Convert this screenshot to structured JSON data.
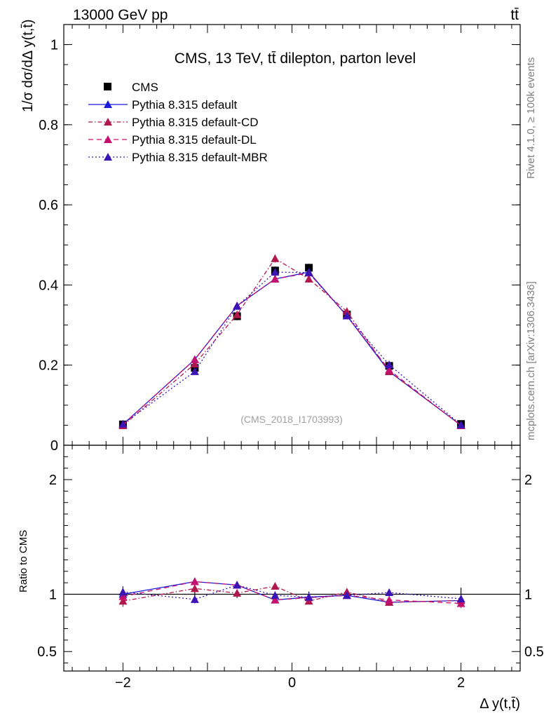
{
  "header": {
    "energy_label": "13000 GeV pp",
    "process_label": "tt̄"
  },
  "side_labels": {
    "rivet": "Rivet 4.1.0, ≥ 100k events",
    "mcplots": "mcplots.cern.ch [arXiv:1306.3436]"
  },
  "chart_data": [
    {
      "type": "line",
      "panel": "main",
      "title": "CMS, 13 TeV, tt̄ dilepton, parton level",
      "watermark": "(CMS_2018_I1703993)",
      "xlabel": "Δ y(t,t̄)",
      "ylabel": "1/σ dσ/dΔ y(t,t̄)",
      "xlim": [
        -2.7,
        2.7
      ],
      "ylim": [
        0,
        1.05
      ],
      "yticks": [
        0,
        0.2,
        0.4,
        0.6,
        0.8,
        1
      ],
      "ytick_labels": [
        "0",
        "0.2",
        "0.4",
        "0.6",
        "0.8",
        "1"
      ],
      "legend_position": "top-left",
      "x": [
        -2.0,
        -1.15,
        -0.65,
        -0.2,
        0.2,
        0.65,
        1.15,
        2.0
      ],
      "series": [
        {
          "name": "CMS",
          "marker": "square",
          "color": "#000000",
          "line": "none",
          "values": [
            0.052,
            0.193,
            0.322,
            0.436,
            0.443,
            0.326,
            0.198,
            0.053
          ],
          "errors": [
            0.003,
            0.008,
            0.01,
            0.01,
            0.01,
            0.01,
            0.008,
            0.003
          ]
        },
        {
          "name": "Pythia 8.315 default",
          "marker": "triangle",
          "color": "#1a1adb",
          "line": "solid",
          "values": [
            0.052,
            0.214,
            0.348,
            0.415,
            0.432,
            0.323,
            0.184,
            0.05
          ],
          "errors": [
            0.002,
            0.007,
            0.009,
            0.009,
            0.009,
            0.008,
            0.006,
            0.002
          ]
        },
        {
          "name": "Pythia 8.315 default-CD",
          "marker": "triangle",
          "color": "#b0174c",
          "line": "dashdot",
          "values": [
            0.049,
            0.203,
            0.326,
            0.466,
            0.415,
            0.334,
            0.184,
            0.05
          ],
          "errors": [
            0.002,
            0.007,
            0.009,
            0.01,
            0.009,
            0.008,
            0.006,
            0.002
          ]
        },
        {
          "name": "Pythia 8.315 default-DL",
          "marker": "triangle",
          "color": "#c4106e",
          "line": "dashed",
          "values": [
            0.052,
            0.214,
            0.348,
            0.415,
            0.43,
            0.323,
            0.188,
            0.049
          ],
          "errors": [
            0.002,
            0.007,
            0.009,
            0.009,
            0.009,
            0.008,
            0.006,
            0.002
          ]
        },
        {
          "name": "Pythia 8.315 default-MBR",
          "marker": "triangle",
          "color": "#3a14b4",
          "line": "dotted",
          "values": [
            0.053,
            0.184,
            0.347,
            0.432,
            0.431,
            0.323,
            0.201,
            0.051
          ],
          "errors": [
            0.002,
            0.007,
            0.009,
            0.009,
            0.009,
            0.008,
            0.006,
            0.002
          ]
        }
      ]
    },
    {
      "type": "line",
      "panel": "ratio",
      "ylabel": "Ratio to CMS",
      "ylim": [
        0.33,
        2.3
      ],
      "yticks": [
        0.5,
        1,
        2
      ],
      "ytick_labels": [
        "0.5",
        "1",
        "2"
      ],
      "xticks": [
        -2,
        0,
        2
      ],
      "xtick_labels": [
        "−2",
        "0",
        "2"
      ],
      "reference_line": 1,
      "x": [
        -2.0,
        -1.15,
        -0.65,
        -0.2,
        0.2,
        0.65,
        1.15,
        2.0
      ],
      "band_errors": [
        0.055,
        0.042,
        0.032,
        0.023,
        0.023,
        0.031,
        0.04,
        0.057
      ],
      "series": [
        {
          "name": "Pythia 8.315 default",
          "color": "#1a1adb",
          "line": "solid",
          "values": [
            1.0,
            1.11,
            1.08,
            0.95,
            0.975,
            0.99,
            0.93,
            0.945
          ],
          "errors": [
            0.05,
            0.035,
            0.03,
            0.02,
            0.02,
            0.028,
            0.03,
            0.04
          ]
        },
        {
          "name": "Pythia 8.315 default-CD",
          "color": "#b0174c",
          "line": "dashdot",
          "values": [
            0.94,
            1.05,
            1.01,
            1.07,
            0.94,
            1.02,
            0.93,
            0.945
          ],
          "errors": [
            0.05,
            0.035,
            0.03,
            0.022,
            0.02,
            0.028,
            0.03,
            0.04
          ]
        },
        {
          "name": "Pythia 8.315 default-DL",
          "color": "#c4106e",
          "line": "dashed",
          "values": [
            0.98,
            1.11,
            1.08,
            0.95,
            0.97,
            0.99,
            0.95,
            0.92
          ],
          "errors": [
            0.05,
            0.035,
            0.03,
            0.02,
            0.02,
            0.028,
            0.03,
            0.04
          ]
        },
        {
          "name": "Pythia 8.315 default-MBR",
          "color": "#3a14b4",
          "line": "dotted",
          "values": [
            1.02,
            0.955,
            1.08,
            0.99,
            0.975,
            0.99,
            1.015,
            0.96
          ],
          "errors": [
            0.05,
            0.035,
            0.03,
            0.02,
            0.02,
            0.028,
            0.03,
            0.04
          ]
        }
      ]
    }
  ]
}
